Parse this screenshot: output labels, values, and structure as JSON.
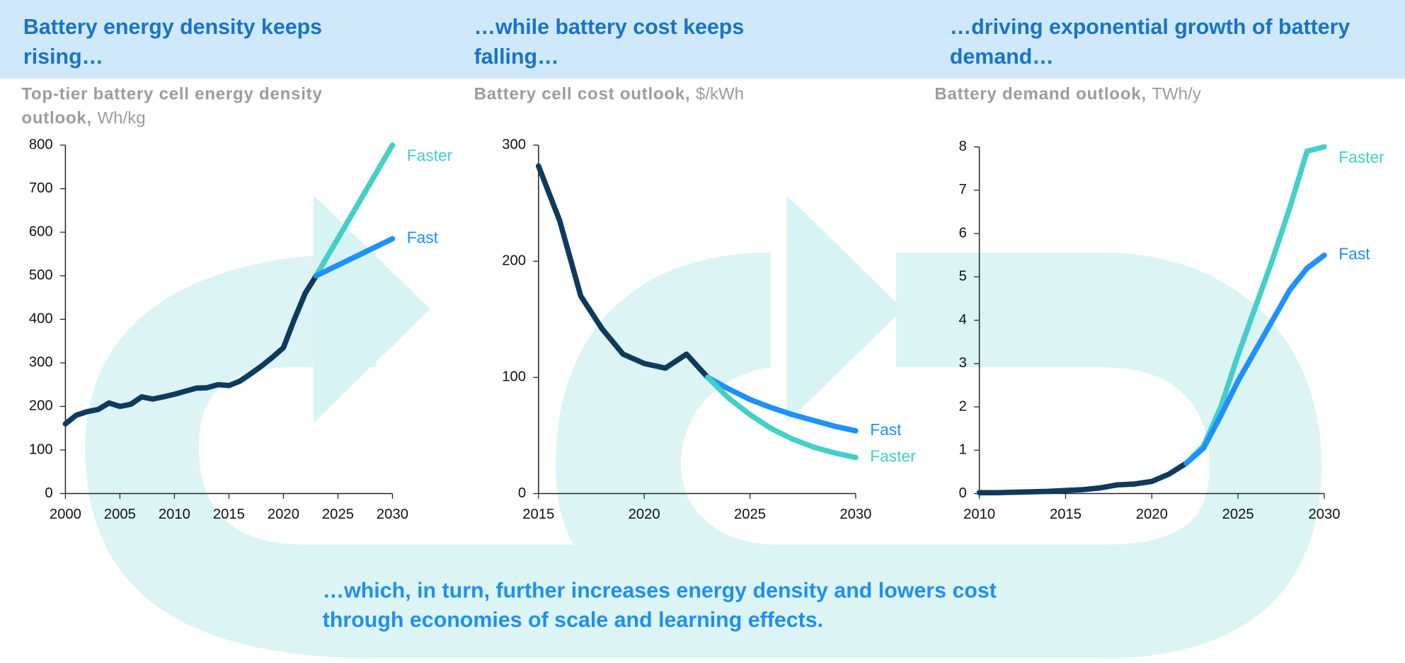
{
  "chart_data": [
    {
      "type": "line",
      "title": "Battery energy density keeps rising…",
      "subtitle": "Top-tier battery cell energy density outlook,",
      "unit": "Wh/kg",
      "xlim": [
        2000,
        2030
      ],
      "xticks": [
        2000,
        2005,
        2010,
        2015,
        2020,
        2025,
        2030
      ],
      "ylim": [
        0,
        800
      ],
      "yticks": [
        0,
        100,
        200,
        300,
        400,
        500,
        600,
        700,
        800
      ],
      "series": [
        {
          "color": "#0d3b5e",
          "x": [
            2000,
            2001,
            2002,
            2003,
            2004,
            2005,
            2006,
            2007,
            2008,
            2009,
            2010,
            2011,
            2012,
            2013,
            2014,
            2015,
            2016,
            2017,
            2018,
            2019,
            2020,
            2021,
            2022,
            2023
          ],
          "values": [
            160,
            180,
            188,
            193,
            208,
            200,
            205,
            222,
            217,
            222,
            228,
            235,
            242,
            243,
            250,
            248,
            258,
            275,
            293,
            313,
            335,
            400,
            460,
            500
          ]
        },
        {
          "name": "Faster",
          "color": "#44cfc9",
          "x": [
            2023,
            2030
          ],
          "values": [
            500,
            800
          ]
        },
        {
          "name": "Fast",
          "color": "#1e90ff",
          "x": [
            2023,
            2030
          ],
          "values": [
            500,
            585
          ]
        }
      ]
    },
    {
      "type": "line",
      "title": "…while battery cost keeps falling…",
      "subtitle": "Battery cell cost outlook,",
      "unit": "$/kWh",
      "xlim": [
        2015,
        2030
      ],
      "xticks": [
        2015,
        2020,
        2025,
        2030
      ],
      "ylim": [
        0,
        300
      ],
      "yticks": [
        0,
        100,
        200,
        300
      ],
      "series": [
        {
          "color": "#0d3b5e",
          "x": [
            2015,
            2016,
            2017,
            2018,
            2019,
            2020,
            2021,
            2022,
            2023
          ],
          "values": [
            282,
            235,
            170,
            142,
            120,
            112,
            108,
            120,
            100
          ]
        },
        {
          "name": "Fast",
          "color": "#1e90ff",
          "x": [
            2023,
            2024,
            2025,
            2026,
            2027,
            2028,
            2029,
            2030
          ],
          "values": [
            100,
            90,
            81,
            74,
            68,
            63,
            58,
            54
          ]
        },
        {
          "name": "Faster",
          "color": "#44cfc9",
          "x": [
            2023,
            2024,
            2025,
            2026,
            2027,
            2028,
            2029,
            2030
          ],
          "values": [
            100,
            82,
            68,
            56,
            47,
            40,
            35,
            31
          ]
        }
      ]
    },
    {
      "type": "line",
      "title": "…driving exponential growth of battery demand…",
      "subtitle": "Battery demand outlook,",
      "unit": "TWh/y",
      "xlim": [
        2010,
        2030
      ],
      "xticks": [
        2010,
        2015,
        2020,
        2025,
        2030
      ],
      "ylim": [
        0,
        8
      ],
      "yticks": [
        0,
        1,
        2,
        3,
        4,
        5,
        6,
        7,
        8
      ],
      "series": [
        {
          "color": "#0d3b5e",
          "x": [
            2010,
            2011,
            2012,
            2013,
            2014,
            2015,
            2016,
            2017,
            2018,
            2019,
            2020,
            2021,
            2022
          ],
          "values": [
            0.02,
            0.02,
            0.03,
            0.04,
            0.05,
            0.07,
            0.09,
            0.13,
            0.2,
            0.22,
            0.28,
            0.45,
            0.7
          ]
        },
        {
          "name": "Faster",
          "color": "#44cfc9",
          "x": [
            2022,
            2023,
            2024,
            2025,
            2026,
            2027,
            2028,
            2029,
            2030
          ],
          "values": [
            0.7,
            1.1,
            2.0,
            3.2,
            4.3,
            5.4,
            6.6,
            7.9,
            8.0
          ]
        },
        {
          "name": "Fast",
          "color": "#1e90ff",
          "x": [
            2022,
            2023,
            2024,
            2025,
            2026,
            2027,
            2028,
            2029,
            2030
          ],
          "values": [
            0.7,
            1.05,
            1.8,
            2.6,
            3.3,
            4.0,
            4.7,
            5.2,
            5.5
          ]
        }
      ]
    }
  ],
  "footer": "…which, in turn, further increases energy density and lowers cost through economies of scale and learning effects."
}
